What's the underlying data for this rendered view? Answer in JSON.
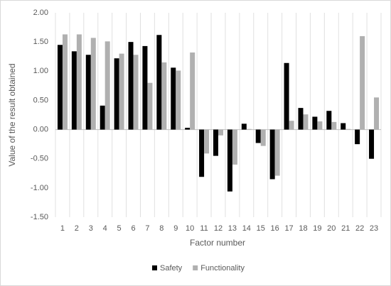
{
  "chart_data": {
    "type": "bar",
    "x_label": "Factor number",
    "y_label": "Value of the result obtained",
    "categories": [
      "1",
      "2",
      "3",
      "4",
      "5",
      "6",
      "7",
      "8",
      "9",
      "10",
      "11",
      "12",
      "13",
      "14",
      "15",
      "16",
      "17",
      "18",
      "19",
      "20",
      "21",
      "22",
      "23"
    ],
    "series": [
      {
        "name": "Safety",
        "color": "#000000",
        "values": [
          1.45,
          1.34,
          1.28,
          0.41,
          1.22,
          1.5,
          1.43,
          1.62,
          1.06,
          0.03,
          -0.81,
          -0.45,
          -1.06,
          0.1,
          -0.23,
          -0.85,
          1.14,
          0.37,
          0.22,
          0.32,
          0.11,
          -0.25,
          -0.5
        ]
      },
      {
        "name": "Functionality",
        "color": "#b0b0b0",
        "values": [
          1.63,
          1.63,
          1.57,
          1.51,
          1.3,
          1.28,
          0.8,
          1.15,
          1.01,
          1.32,
          -0.41,
          -0.1,
          -0.6,
          0.01,
          -0.28,
          -0.79,
          0.15,
          0.26,
          0.14,
          0.13,
          0.01,
          1.6,
          0.55
        ]
      }
    ],
    "ylim": [
      -1.5,
      2.0
    ],
    "yticks": [
      {
        "value": 2.0,
        "label": "2.00"
      },
      {
        "value": 1.5,
        "label": "1.50"
      },
      {
        "value": 1.0,
        "label": "1.00"
      },
      {
        "value": 0.5,
        "label": "0.50"
      },
      {
        "value": 0.0,
        "label": "0.00"
      },
      {
        "value": -0.5,
        "label": "-0.50"
      },
      {
        "value": -1.0,
        "label": "-1.00"
      },
      {
        "value": -1.5,
        "label": "-1.50"
      }
    ],
    "legend": "bottom",
    "grid": true
  }
}
